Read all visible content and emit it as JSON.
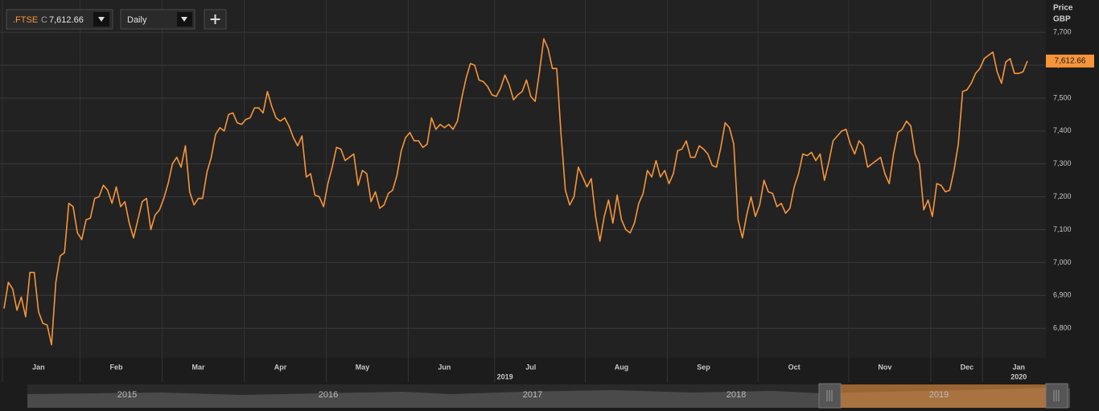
{
  "header": {
    "symbol": ".FTSE",
    "flag": "C",
    "price": "7,612.66",
    "interval": "Daily"
  },
  "chart_data": {
    "type": "line",
    "axis_title": "Price",
    "currency": "GBP",
    "color": "#f7953b",
    "ylim": [
      6710,
      7786
    ],
    "yticks": [
      {
        "value": 6800,
        "label": "6,800"
      },
      {
        "value": 6900,
        "label": "6,900"
      },
      {
        "value": 7000,
        "label": "7,000"
      },
      {
        "value": 7100,
        "label": "7,100"
      },
      {
        "value": 7200,
        "label": "7,200"
      },
      {
        "value": 7300,
        "label": "7,300"
      },
      {
        "value": 7400,
        "label": "7,400"
      },
      {
        "value": 7500,
        "label": "7,500"
      },
      {
        "value": 7600,
        "label": "7,600"
      },
      {
        "value": 7700,
        "label": "7,700"
      }
    ],
    "grid": true,
    "last_value_label": "7,612.66",
    "categories": [
      null,
      null,
      null,
      null,
      null,
      null,
      null,
      null,
      "Jan",
      null,
      null,
      null,
      null,
      null,
      null,
      null,
      null,
      null,
      null,
      null,
      null,
      null,
      null,
      null,
      null,
      null,
      "Feb",
      null,
      null,
      null,
      null,
      null,
      null,
      null,
      null,
      null,
      null,
      null,
      null,
      null,
      null,
      null,
      null,
      null,
      null,
      "Mar",
      null,
      null,
      null,
      null,
      null,
      null,
      null,
      null,
      null,
      null,
      null,
      null,
      null,
      null,
      null,
      null,
      null,
      null,
      "Apr",
      null,
      null,
      null,
      null,
      null,
      null,
      null,
      null,
      null,
      null,
      null,
      null,
      null,
      null,
      null,
      null,
      null,
      null,
      "May",
      null,
      null,
      null,
      null,
      null,
      null,
      null,
      null,
      null,
      null,
      null,
      null,
      null,
      null,
      null,
      null,
      null,
      null,
      "Jun",
      null,
      null,
      null,
      null,
      null,
      null,
      null,
      null,
      null,
      null,
      null,
      null,
      null,
      null,
      null,
      null,
      null,
      null,
      null,
      "Jul",
      null,
      null,
      null,
      null,
      null,
      null,
      null,
      null,
      null,
      null,
      null,
      null,
      null,
      null,
      null,
      null,
      null,
      null,
      null,
      null,
      "Aug",
      null,
      null,
      null,
      null,
      null,
      null,
      null,
      null,
      null,
      null,
      null,
      null,
      null,
      null,
      null,
      null,
      null,
      null,
      "Sep",
      null,
      null,
      null,
      null,
      null,
      null,
      null,
      null,
      null,
      null,
      null,
      null,
      null,
      null,
      null,
      null,
      null,
      null,
      null,
      null,
      "Oct",
      null,
      null,
      null,
      null,
      null,
      null,
      null,
      null,
      null,
      null,
      null,
      null,
      null,
      null,
      null,
      null,
      null,
      null,
      null,
      null,
      "Nov",
      null,
      null,
      null,
      null,
      null,
      null,
      null,
      null,
      null,
      null,
      null,
      null,
      null,
      null,
      null,
      null,
      null,
      null,
      "Dec",
      null,
      null,
      null,
      null,
      null,
      null,
      null,
      null,
      null,
      null,
      null,
      "Jan",
      null,
      null
    ],
    "years": [
      null,
      null,
      null,
      null,
      null,
      null,
      null,
      null,
      null,
      null,
      null,
      null,
      null,
      null,
      null,
      null,
      null,
      null,
      null,
      null,
      null,
      null,
      null,
      null,
      null,
      null,
      null,
      null,
      null,
      null,
      null,
      null,
      null,
      null,
      null,
      null,
      null,
      null,
      null,
      null,
      null,
      null,
      null,
      null,
      null,
      null,
      null,
      null,
      null,
      null,
      null,
      null,
      null,
      null,
      null,
      null,
      null,
      null,
      null,
      null,
      null,
      null,
      null,
      null,
      null,
      null,
      null,
      null,
      null,
      null,
      null,
      null,
      null,
      null,
      null,
      null,
      null,
      null,
      null,
      null,
      null,
      null,
      null,
      null,
      null,
      null,
      null,
      null,
      null,
      null,
      null,
      null,
      null,
      null,
      null,
      null,
      null,
      null,
      null,
      null,
      null,
      null,
      null,
      null,
      null,
      null,
      null,
      null,
      null,
      null,
      null,
      null,
      null,
      null,
      null,
      null,
      "2019",
      null,
      null,
      null,
      null,
      null,
      null,
      null,
      null,
      null,
      null,
      null,
      null,
      null,
      null,
      null,
      null,
      null,
      null,
      null,
      null,
      null,
      null,
      null,
      null,
      null,
      null,
      null,
      null,
      null,
      null,
      null,
      null,
      null,
      null,
      null,
      null,
      null,
      null,
      null,
      null,
      null,
      null,
      null,
      null,
      null,
      null,
      null,
      null,
      null,
      null,
      null,
      null,
      null,
      null,
      null,
      null,
      null,
      null,
      null,
      null,
      null,
      null,
      null,
      null,
      null,
      null,
      null,
      null,
      null,
      null,
      null,
      null,
      null,
      null,
      null,
      null,
      null,
      null,
      null,
      null,
      null,
      null,
      null,
      null,
      null,
      null,
      null,
      null,
      null,
      null,
      null,
      null,
      null,
      null,
      null,
      null,
      null,
      null,
      null,
      null,
      null,
      null,
      null,
      null,
      null,
      null,
      null,
      null,
      null,
      null,
      null,
      null,
      null,
      null,
      null,
      null,
      null,
      null,
      "2020",
      null,
      null
    ],
    "values": [
      6860,
      6940,
      6920,
      6855,
      6895,
      6835,
      6970,
      6970,
      6850,
      6815,
      6810,
      6750,
      6940,
      7020,
      7030,
      7180,
      7170,
      7090,
      7070,
      7130,
      7135,
      7195,
      7200,
      7235,
      7220,
      7180,
      7230,
      7170,
      7185,
      7120,
      7075,
      7130,
      7185,
      7195,
      7100,
      7145,
      7160,
      7195,
      7240,
      7300,
      7320,
      7290,
      7355,
      7215,
      7175,
      7195,
      7195,
      7275,
      7320,
      7390,
      7410,
      7400,
      7450,
      7455,
      7425,
      7420,
      7435,
      7440,
      7470,
      7470,
      7455,
      7520,
      7475,
      7440,
      7430,
      7440,
      7415,
      7380,
      7355,
      7385,
      7260,
      7270,
      7205,
      7200,
      7170,
      7240,
      7290,
      7350,
      7345,
      7310,
      7320,
      7330,
      7235,
      7280,
      7270,
      7185,
      7215,
      7165,
      7175,
      7210,
      7220,
      7265,
      7340,
      7380,
      7395,
      7370,
      7370,
      7350,
      7360,
      7440,
      7405,
      7420,
      7410,
      7420,
      7405,
      7430,
      7500,
      7560,
      7605,
      7600,
      7555,
      7550,
      7535,
      7510,
      7505,
      7530,
      7570,
      7540,
      7495,
      7510,
      7520,
      7555,
      7505,
      7490,
      7580,
      7680,
      7650,
      7590,
      7590,
      7390,
      7220,
      7175,
      7200,
      7290,
      7260,
      7230,
      7255,
      7140,
      7065,
      7140,
      7190,
      7120,
      7205,
      7130,
      7100,
      7090,
      7120,
      7180,
      7210,
      7280,
      7260,
      7310,
      7260,
      7280,
      7240,
      7270,
      7340,
      7345,
      7370,
      7320,
      7320,
      7355,
      7345,
      7330,
      7295,
      7290,
      7350,
      7425,
      7410,
      7360,
      7130,
      7075,
      7145,
      7200,
      7140,
      7175,
      7250,
      7215,
      7210,
      7170,
      7180,
      7150,
      7165,
      7230,
      7270,
      7330,
      7325,
      7335,
      7310,
      7330,
      7250,
      7305,
      7370,
      7385,
      7400,
      7405,
      7360,
      7330,
      7370,
      7355,
      7290,
      7300,
      7310,
      7320,
      7270,
      7240,
      7330,
      7395,
      7405,
      7430,
      7415,
      7330,
      7300,
      7160,
      7190,
      7140,
      7240,
      7235,
      7215,
      7220,
      7280,
      7360,
      7520,
      7525,
      7545,
      7575,
      7590,
      7620,
      7630,
      7640,
      7580,
      7545,
      7610,
      7620,
      7575,
      7575,
      7580,
      7612.66
    ]
  },
  "navigator": {
    "labels": [
      "2015",
      "2016",
      "2017",
      "2018",
      "2019"
    ]
  }
}
